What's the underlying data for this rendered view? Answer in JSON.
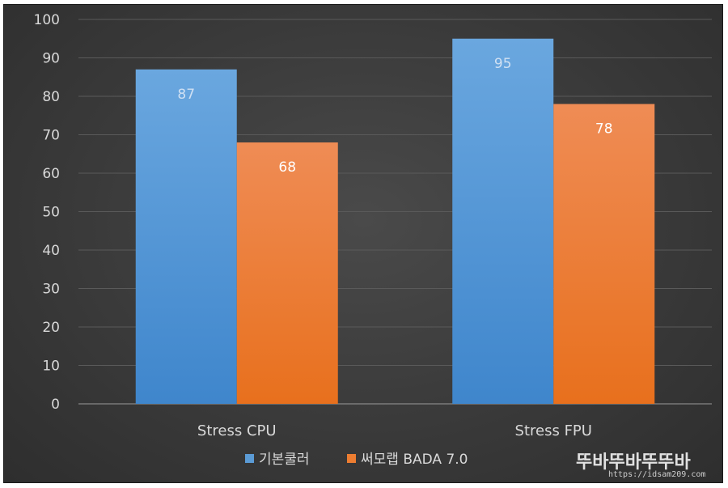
{
  "chart_data": {
    "type": "bar",
    "categories": [
      "Stress CPU",
      "Stress FPU"
    ],
    "series": [
      {
        "name": "기본쿨러",
        "values": [
          87,
          95
        ],
        "color": "#5b9bd5"
      },
      {
        "name": "써모랩 BADA 7.0",
        "values": [
          68,
          78
        ],
        "color": "#ed7d31"
      }
    ],
    "ylim": [
      0,
      100
    ],
    "yticks": [
      "0",
      "10",
      "20",
      "30",
      "40",
      "50",
      "60",
      "70",
      "80",
      "90",
      "100"
    ],
    "legend_position": "bottom",
    "grid": true,
    "title": "",
    "xlabel": "",
    "ylabel": ""
  },
  "watermark": {
    "main": "뚜바뚜바뚜뚜바",
    "url": "https://idsam209.com"
  }
}
